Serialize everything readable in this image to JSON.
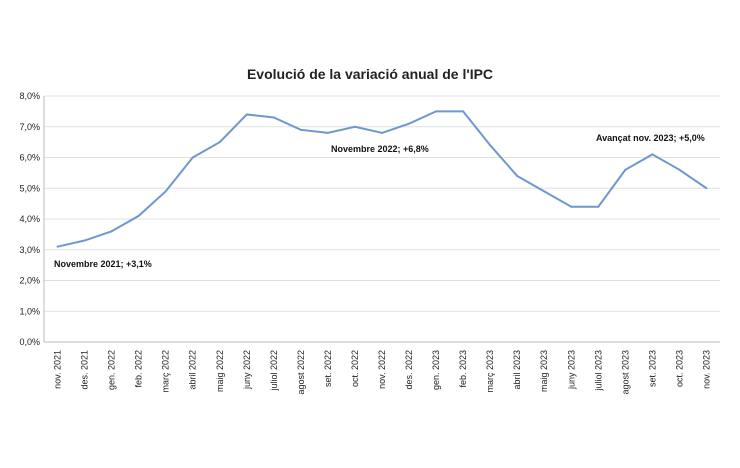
{
  "chart_data": {
    "type": "line",
    "title": "Evolució de la variació anual de l'IPC",
    "categories": [
      "nov. 2021",
      "des. 2021",
      "gen. 2022",
      "feb. 2022",
      "març 2022",
      "abril 2022",
      "maig 2022",
      "juny 2022",
      "juliol 2022",
      "agost 2022",
      "set. 2022",
      "oct. 2022",
      "nov. 2022",
      "des. 2022",
      "gen. 2023",
      "feb. 2023",
      "març 2023",
      "abril 2023",
      "maig 2023",
      "juny 2023",
      "juliol 2023",
      "agost 2023",
      "set. 2023",
      "oct. 2023",
      "nov. 2023"
    ],
    "values": [
      3.1,
      3.3,
      3.6,
      4.1,
      4.9,
      6.0,
      6.5,
      7.4,
      7.3,
      6.9,
      6.8,
      7.0,
      6.8,
      7.1,
      7.5,
      7.5,
      6.4,
      5.4,
      4.9,
      4.4,
      4.4,
      5.6,
      6.1,
      5.6,
      5.0
    ],
    "ylim": [
      0,
      8
    ],
    "yticks": [
      "0,0%",
      "1,0%",
      "2,0%",
      "3,0%",
      "4,0%",
      "5,0%",
      "6,0%",
      "7,0%",
      "8,0%"
    ],
    "grid": true,
    "line_color": "#6f97cf",
    "annotations": [
      "Novembre 2021; +3,1%",
      "Novembre 2022;  +6,8%",
      "Avançat nov. 2023; +5,0%"
    ]
  }
}
